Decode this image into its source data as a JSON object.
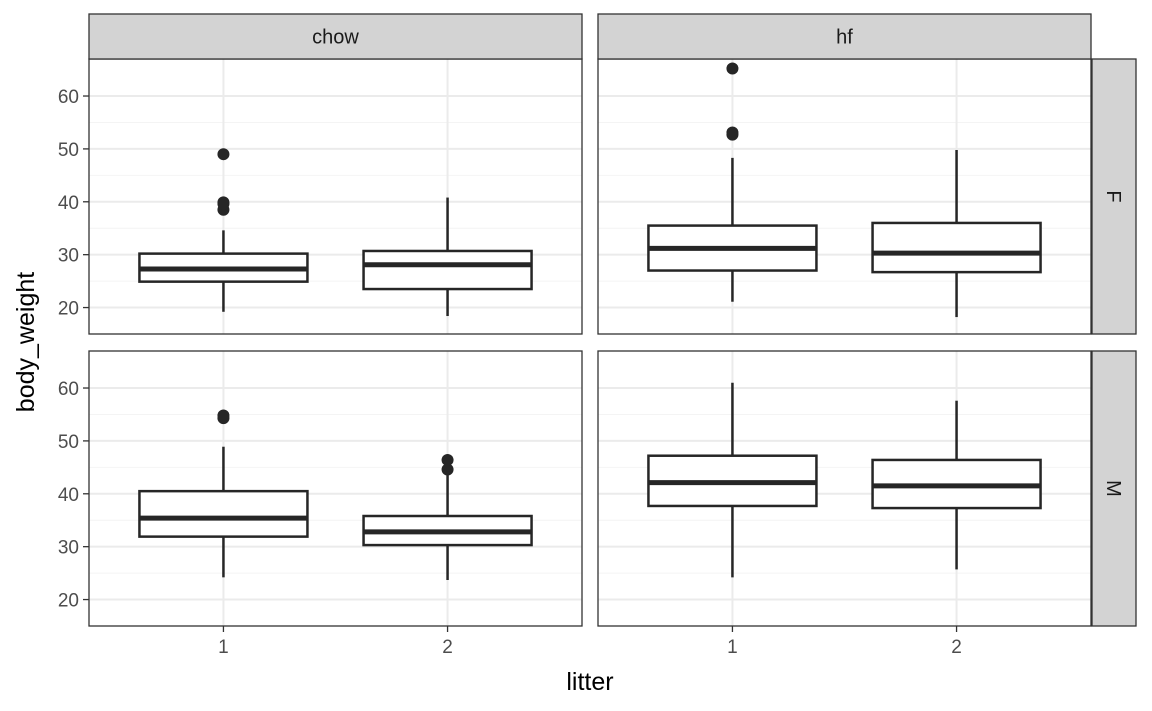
{
  "chart_data": {
    "type": "boxplot",
    "xlabel": "litter",
    "ylabel": "body_weight",
    "categories": [
      "1",
      "2"
    ],
    "y_ticks": [
      20,
      30,
      40,
      50,
      60
    ],
    "ylim": [
      15,
      67
    ],
    "grid": true,
    "facet_columns": [
      "chow",
      "hf"
    ],
    "facet_rows": [
      "F",
      "M"
    ],
    "panels": [
      {
        "col": "chow",
        "row": "F",
        "boxes": [
          {
            "x": "1",
            "lower_whisker": 19.2,
            "q1": 24.9,
            "median": 27.3,
            "q3": 30.2,
            "upper_whisker": 34.6,
            "outliers": [
              38.5,
              39.6,
              39.9,
              49.0
            ]
          },
          {
            "x": "2",
            "lower_whisker": 18.4,
            "q1": 23.5,
            "median": 28.1,
            "q3": 30.7,
            "upper_whisker": 40.8,
            "outliers": []
          }
        ]
      },
      {
        "col": "hf",
        "row": "F",
        "boxes": [
          {
            "x": "1",
            "lower_whisker": 21.1,
            "q1": 27.0,
            "median": 31.2,
            "q3": 35.5,
            "upper_whisker": 48.3,
            "outliers": [
              52.7,
              53.1,
              65.2
            ]
          },
          {
            "x": "2",
            "lower_whisker": 18.2,
            "q1": 26.7,
            "median": 30.3,
            "q3": 36.0,
            "upper_whisker": 49.8,
            "outliers": []
          }
        ]
      },
      {
        "col": "chow",
        "row": "M",
        "boxes": [
          {
            "x": "1",
            "lower_whisker": 24.2,
            "q1": 31.9,
            "median": 35.4,
            "q3": 40.5,
            "upper_whisker": 48.9,
            "outliers": [
              54.3,
              54.8
            ]
          },
          {
            "x": "2",
            "lower_whisker": 23.7,
            "q1": 30.3,
            "median": 32.8,
            "q3": 35.8,
            "upper_whisker": 44.1,
            "outliers": [
              44.6,
              46.4
            ]
          }
        ]
      },
      {
        "col": "hf",
        "row": "M",
        "boxes": [
          {
            "x": "1",
            "lower_whisker": 24.2,
            "q1": 37.7,
            "median": 42.1,
            "q3": 47.2,
            "upper_whisker": 61.0,
            "outliers": []
          },
          {
            "x": "2",
            "lower_whisker": 25.7,
            "q1": 37.3,
            "median": 41.5,
            "q3": 46.4,
            "upper_whisker": 57.6,
            "outliers": []
          }
        ]
      }
    ]
  },
  "colors": {
    "strip_fill": "#d3d3d3",
    "panel_border": "#333333",
    "grid_major": "#ebebeb",
    "grid_minor": "#f4f4f4",
    "box_stroke": "#262626",
    "outlier": "#262626"
  }
}
